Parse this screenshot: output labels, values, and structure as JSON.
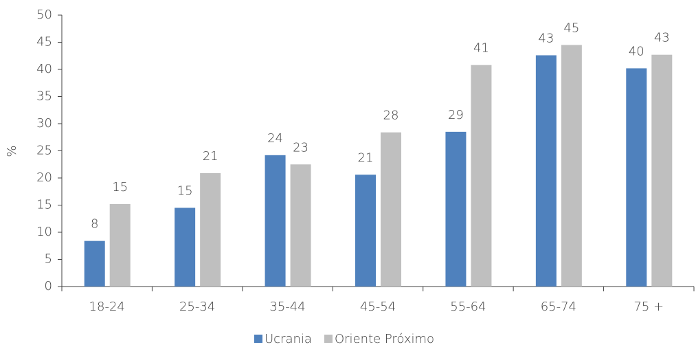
{
  "chart_data": {
    "type": "bar",
    "y_label": "%",
    "categories": [
      "18-24",
      "25-34",
      "35-44",
      "45-54",
      "55-64",
      "65-74",
      "75 +"
    ],
    "series": [
      {
        "name": "Ucrania",
        "color": "#4f81bd",
        "values": [
          8.4,
          14.5,
          24.2,
          20.6,
          28.5,
          42.6,
          40.2
        ],
        "value_labels": [
          "8",
          "15",
          "24",
          "21",
          "29",
          "43",
          "40"
        ]
      },
      {
        "name": "Oriente Próximo",
        "color": "#bfbfbf",
        "values": [
          15.2,
          20.9,
          22.5,
          28.4,
          40.8,
          44.5,
          42.7
        ],
        "value_labels": [
          "15",
          "21",
          "23",
          "28",
          "41",
          "45",
          "43"
        ]
      }
    ],
    "ylim": [
      0,
      50
    ],
    "yticks": [
      0,
      5,
      10,
      15,
      20,
      25,
      30,
      35,
      40,
      45,
      50
    ],
    "legend": "bottom"
  }
}
